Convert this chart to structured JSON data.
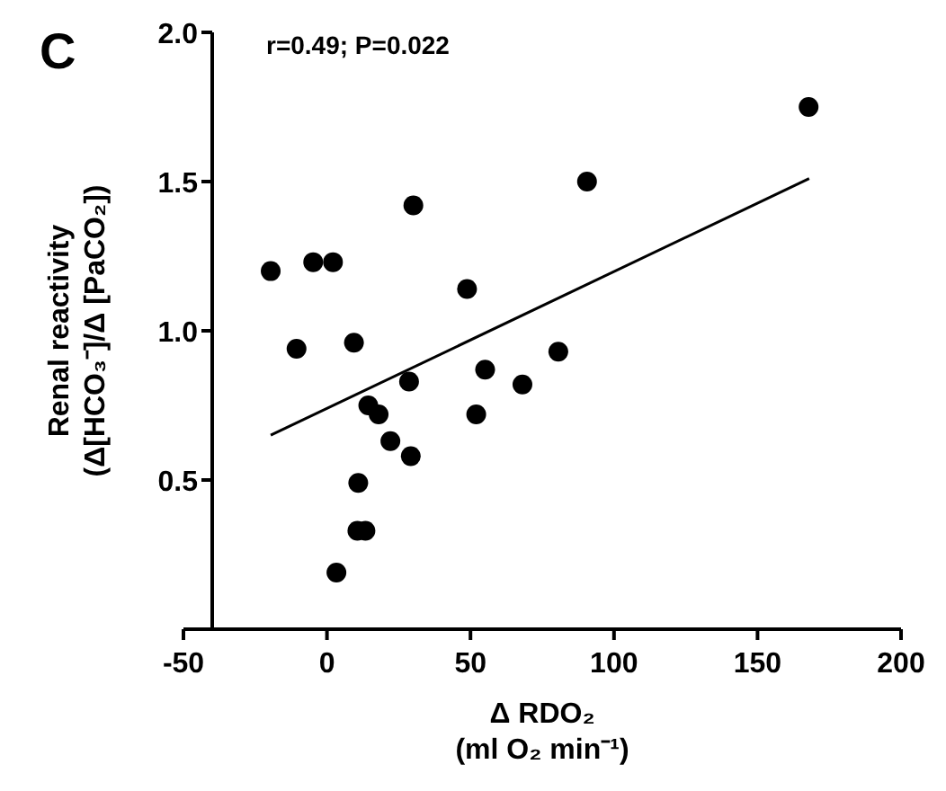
{
  "chart_data": {
    "type": "scatter",
    "xlabel": "Δ RDO₂\n(ml O₂ min⁻¹)",
    "ylabel": "Renal reactivity\n(Δ[HCO₃⁻]/Δ [PaCO₂])",
    "annotations": [
      "C",
      "r=0.49; P=0.022"
    ],
    "xlim": [
      -50,
      200
    ],
    "xticks": [
      -50,
      0,
      50,
      100,
      150,
      200
    ],
    "ylim": [
      0,
      2.0
    ],
    "yticks": [
      {
        "value": 0.5,
        "label": "0.5"
      },
      {
        "value": 1.0,
        "label": "1.0"
      },
      {
        "value": 1.5,
        "label": "1.5"
      },
      {
        "value": 2.0,
        "label": "2.0"
      }
    ],
    "grid": false,
    "series": [
      {
        "marker": "circle",
        "color": "#000000",
        "x": [
          -19.6,
          -4.8,
          2.1,
          -10.6,
          9.4,
          30.1,
          48.8,
          90.6,
          167.8,
          28.6,
          55.1,
          68.1,
          80.6,
          14.4,
          18.0,
          52.0,
          22.1,
          29.2,
          10.9,
          10.6,
          13.4,
          3.3
        ],
        "values": [
          1.2,
          1.23,
          1.23,
          0.94,
          0.96,
          1.42,
          1.14,
          1.5,
          1.75,
          0.83,
          0.87,
          0.82,
          0.93,
          0.75,
          0.72,
          0.72,
          0.63,
          0.58,
          0.49,
          0.33,
          0.33,
          0.19
        ]
      },
      {
        "type": "line",
        "color": "#000000",
        "x": [
          -19.6,
          168
        ],
        "values": [
          0.65,
          1.51
        ]
      }
    ]
  }
}
